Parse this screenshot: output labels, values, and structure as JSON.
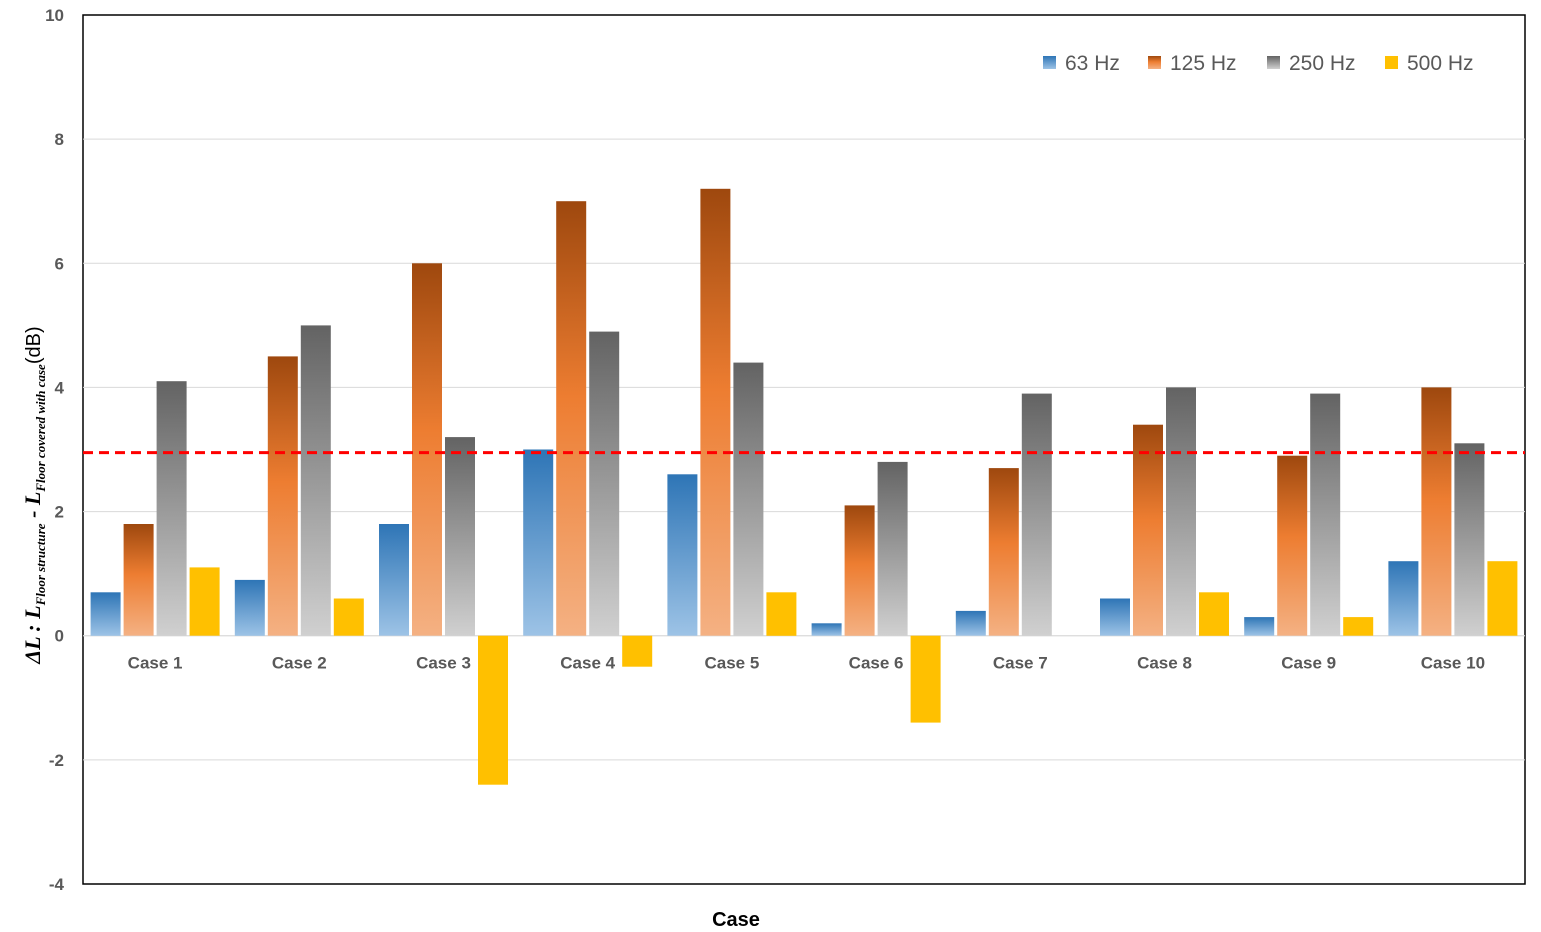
{
  "chart_data": {
    "type": "bar",
    "title": "",
    "xlabel": "Case",
    "ylabel": {
      "delta": "ΔL",
      "sep": " : ",
      "L1": "L",
      "L1_sub": "Floor structure",
      "minus": " - ",
      "L2": "L",
      "L2_sub": "Floor covered with case",
      "unit": "(dB)"
    },
    "ylim": [
      -4,
      10
    ],
    "yticks": [
      -4,
      -2,
      0,
      2,
      4,
      6,
      8,
      10
    ],
    "grid": true,
    "legend_position": "top-right",
    "reference_line": {
      "value": 2.95,
      "color": "#FF0000",
      "style": "dashed"
    },
    "categories": [
      "Case 1",
      "Case 2",
      "Case 3",
      "Case 4",
      "Case 5",
      "Case 6",
      "Case 7",
      "Case 8",
      "Case 9",
      "Case 10"
    ],
    "series": [
      {
        "name": "63 Hz",
        "values": [
          0.7,
          0.9,
          1.8,
          3.0,
          2.6,
          0.2,
          0.4,
          0.6,
          0.3,
          1.2
        ],
        "color": "#2E75B6",
        "color_light": "#9DC3E6"
      },
      {
        "name": "125 Hz",
        "values": [
          1.8,
          4.5,
          6.0,
          7.0,
          7.2,
          2.1,
          2.7,
          3.4,
          2.9,
          4.0
        ],
        "color": "#9E480E",
        "color_light": "#F4B183",
        "color_mid": "#ED7D31"
      },
      {
        "name": "250 Hz",
        "values": [
          4.1,
          5.0,
          3.2,
          4.9,
          4.4,
          2.8,
          3.9,
          4.0,
          3.9,
          3.1
        ],
        "color": "#636363",
        "color_light": "#D0D0D0"
      },
      {
        "name": "500 Hz",
        "values": [
          1.1,
          0.6,
          -2.4,
          -0.5,
          0.7,
          -1.4,
          0.0,
          0.7,
          0.3,
          1.2
        ],
        "color": "#FFC000"
      }
    ]
  }
}
